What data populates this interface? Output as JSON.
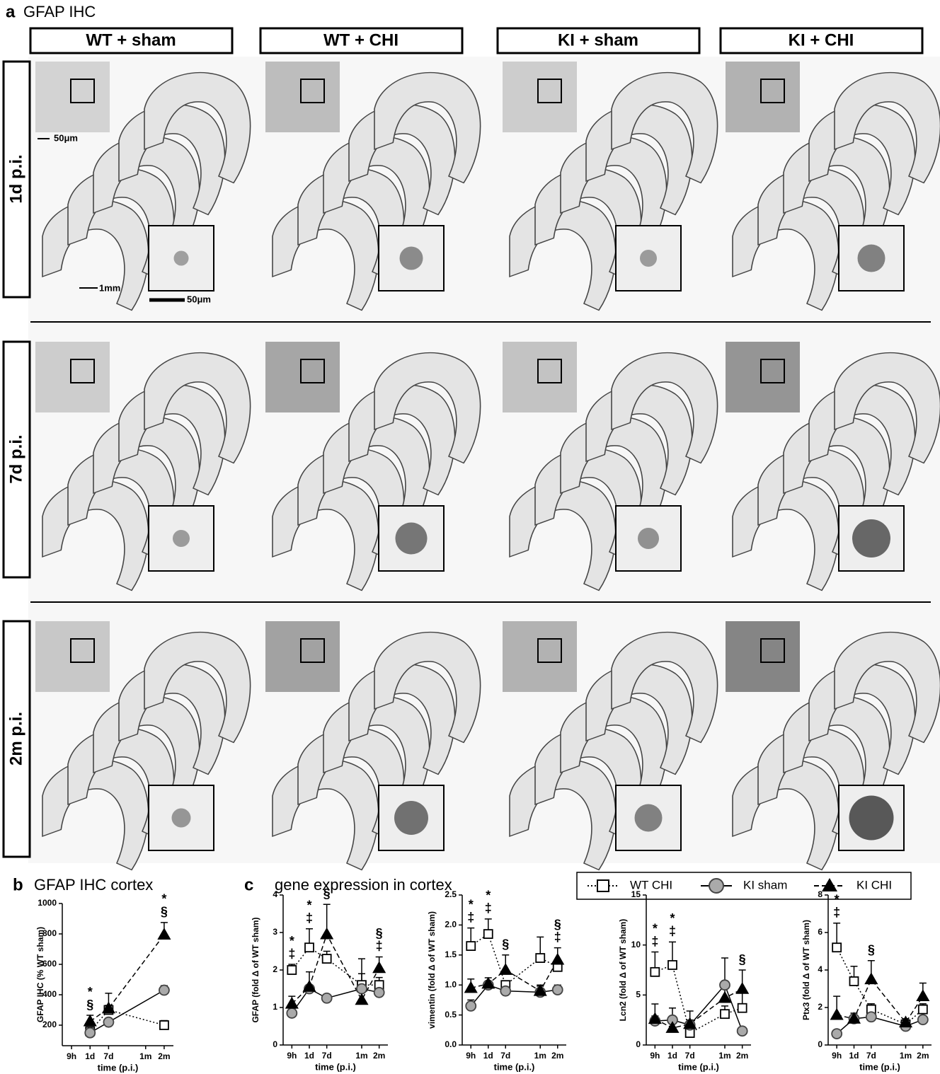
{
  "panel_a": {
    "label": "a",
    "title": "GFAP IHC",
    "columns": [
      "WT + sham",
      "WT + CHI",
      "KI + sham",
      "KI + CHI"
    ],
    "rows": [
      "1d p.i.",
      "7d p.i.",
      "2m p.i."
    ],
    "scale_bars": [
      "50μm",
      "1mm",
      "50μm"
    ]
  },
  "panel_b": {
    "label": "b",
    "title": "GFAP IHC cortex"
  },
  "panel_c": {
    "label": "c",
    "title": "gene expression in cortex"
  },
  "chart_data": [
    {
      "type": "line",
      "y_label": "GFAP IHC (% WT sham)",
      "x_label": "time (p.i.)",
      "xlim": [
        -0.5,
        5.5
      ],
      "xticks": [
        {
          "value": 0,
          "label": "9h"
        },
        {
          "value": 1,
          "label": "1d"
        },
        {
          "value": 2,
          "label": "7d"
        },
        {
          "value": 4,
          "label": "1m"
        },
        {
          "value": 5,
          "label": "2m"
        }
      ],
      "ylim": [
        65,
        1000
      ],
      "yticks": [
        200,
        400,
        600,
        800,
        1000
      ],
      "x": [
        1,
        2,
        5
      ],
      "series": [
        {
          "name": "WT CHI",
          "color": "#ffffff",
          "marker": "square",
          "line_style": "dotted",
          "values": [
            160,
            300,
            200
          ],
          "errors": [
            10,
            30,
            30
          ]
        },
        {
          "name": "KI sham",
          "color": "#aaaaaa",
          "marker": "circle",
          "line_style": "solid",
          "values": [
            150,
            220,
            430
          ],
          "errors": [
            10,
            20,
            30
          ]
        },
        {
          "name": "KI CHI",
          "color": "#000000",
          "marker": "triangle",
          "line_style": "dashed",
          "values": [
            225,
            310,
            795
          ],
          "errors": [
            40,
            100,
            80
          ]
        }
      ],
      "annotations": [
        {
          "x": 1,
          "labels": [
            "*",
            "§"
          ]
        },
        {
          "x": 5,
          "labels": [
            "*",
            "§"
          ]
        }
      ]
    },
    {
      "type": "line",
      "y_label": "GFAP (fold Δ of WT sham)",
      "x_label": "time (p.i.)",
      "xlim": [
        -0.5,
        5.5
      ],
      "xticks": [
        {
          "value": 0,
          "label": "9h"
        },
        {
          "value": 1,
          "label": "1d"
        },
        {
          "value": 2,
          "label": "7d"
        },
        {
          "value": 4,
          "label": "1m"
        },
        {
          "value": 5,
          "label": "2m"
        }
      ],
      "ylim": [
        0,
        4
      ],
      "yticks": [
        0,
        1,
        2,
        3,
        4
      ],
      "x": [
        0,
        1,
        2,
        4,
        5
      ],
      "series": [
        {
          "name": "WT CHI",
          "color": "#ffffff",
          "marker": "square",
          "line_style": "dotted",
          "values": [
            2.0,
            2.6,
            2.3,
            1.6,
            1.6
          ],
          "errors": [
            0.15,
            0.5,
            0.2,
            0.3,
            0.2
          ]
        },
        {
          "name": "KI sham",
          "color": "#aaaaaa",
          "marker": "circle",
          "line_style": "solid",
          "values": [
            0.85,
            1.5,
            1.25,
            1.5,
            1.4
          ],
          "errors": [
            0.15,
            0.1,
            0.05,
            0.8,
            0.1
          ]
        },
        {
          "name": "KI CHI",
          "color": "#000000",
          "marker": "triangle",
          "line_style": "dashed",
          "values": [
            1.1,
            1.55,
            2.95,
            1.2,
            2.05
          ],
          "errors": [
            0.2,
            0.4,
            0.8,
            0.2,
            0.3
          ]
        }
      ],
      "annotations": [
        {
          "x": 0,
          "labels": [
            "*",
            "‡"
          ]
        },
        {
          "x": 1,
          "labels": [
            "*",
            "‡"
          ]
        },
        {
          "x": 2,
          "labels": [
            "§"
          ]
        },
        {
          "x": 5,
          "labels": [
            "§",
            "‡"
          ]
        }
      ]
    },
    {
      "type": "line",
      "y_label": "vimentin (fold Δ of WT sham)",
      "x_label": "time (p.i.)",
      "xlim": [
        -0.5,
        5.5
      ],
      "xticks": [
        {
          "value": 0,
          "label": "9h"
        },
        {
          "value": 1,
          "label": "1d"
        },
        {
          "value": 2,
          "label": "7d"
        },
        {
          "value": 4,
          "label": "1m"
        },
        {
          "value": 5,
          "label": "2m"
        }
      ],
      "ylim": [
        0,
        2.5
      ],
      "yticks": [
        {
          "value": 0,
          "label": "0.0"
        },
        0.5,
        {
          "value": 1,
          "label": "1.0"
        },
        1.5,
        {
          "value": 2,
          "label": "2.0"
        },
        2.5
      ],
      "x": [
        0,
        1,
        2,
        4,
        5
      ],
      "series": [
        {
          "name": "WT CHI",
          "color": "#ffffff",
          "marker": "square",
          "line_style": "dotted",
          "values": [
            1.65,
            1.85,
            1.0,
            1.45,
            1.3
          ],
          "errors": [
            0.3,
            0.25,
            0.05,
            0.35,
            0.05
          ]
        },
        {
          "name": "KI sham",
          "color": "#aaaaaa",
          "marker": "circle",
          "line_style": "solid",
          "values": [
            0.65,
            1.0,
            0.9,
            0.88,
            0.92
          ],
          "errors": [
            0.1,
            0.05,
            0.05,
            0.1,
            0.08
          ]
        },
        {
          "name": "KI CHI",
          "color": "#000000",
          "marker": "triangle",
          "line_style": "dashed",
          "values": [
            0.95,
            1.02,
            1.25,
            0.9,
            1.42
          ],
          "errors": [
            0.15,
            0.1,
            0.25,
            0.1,
            0.2
          ]
        }
      ],
      "annotations": [
        {
          "x": 0,
          "labels": [
            "*",
            "‡"
          ]
        },
        {
          "x": 1,
          "labels": [
            "*",
            "‡"
          ]
        },
        {
          "x": 2,
          "labels": [
            "§"
          ]
        },
        {
          "x": 5,
          "labels": [
            "§",
            "‡"
          ]
        }
      ]
    },
    {
      "type": "line",
      "y_label": "Lcn2 (fold Δ of WT sham)",
      "x_label": "time (p.i.)",
      "xlim": [
        -0.5,
        5.5
      ],
      "xticks": [
        {
          "value": 0,
          "label": "9h"
        },
        {
          "value": 1,
          "label": "1d"
        },
        {
          "value": 2,
          "label": "7d"
        },
        {
          "value": 4,
          "label": "1m"
        },
        {
          "value": 5,
          "label": "2m"
        }
      ],
      "ylim": [
        0,
        15
      ],
      "yticks": [
        0,
        5,
        10,
        15
      ],
      "x": [
        0,
        1,
        2,
        4,
        5
      ],
      "series": [
        {
          "name": "WT CHI",
          "color": "#ffffff",
          "marker": "square",
          "line_style": "dotted",
          "values": [
            7.3,
            8.0,
            1.2,
            3.1,
            3.7
          ],
          "errors": [
            2,
            2.3,
            0.3,
            0.8,
            1.5
          ]
        },
        {
          "name": "KI sham",
          "color": "#aaaaaa",
          "marker": "circle",
          "line_style": "solid",
          "values": [
            2.4,
            2.5,
            2.0,
            6.0,
            1.4
          ],
          "errors": [
            0.5,
            1.2,
            0.5,
            2.7,
            0.3
          ]
        },
        {
          "name": "KI CHI",
          "color": "#000000",
          "marker": "triangle",
          "line_style": "dashed",
          "values": [
            2.6,
            1.7,
            2.1,
            4.7,
            5.6
          ],
          "errors": [
            1.5,
            0.5,
            1.3,
            1,
            1.9
          ]
        }
      ],
      "annotations": [
        {
          "x": 0,
          "labels": [
            "*",
            "‡"
          ]
        },
        {
          "x": 1,
          "labels": [
            "*",
            "‡"
          ]
        },
        {
          "x": 5,
          "labels": [
            "§"
          ]
        }
      ]
    },
    {
      "type": "line",
      "y_label": "Ptx3 (fold Δ of WT sham)",
      "x_label": "time (p.i.)",
      "xlim": [
        -0.5,
        5.5
      ],
      "xticks": [
        {
          "value": 0,
          "label": "9h"
        },
        {
          "value": 1,
          "label": "1d"
        },
        {
          "value": 2,
          "label": "7d"
        },
        {
          "value": 4,
          "label": "1m"
        },
        {
          "value": 5,
          "label": "2m"
        }
      ],
      "ylim": [
        0,
        8
      ],
      "yticks": [
        0,
        2,
        4,
        6,
        8
      ],
      "x": [
        0,
        1,
        2,
        4,
        5
      ],
      "series": [
        {
          "name": "WT CHI",
          "color": "#ffffff",
          "marker": "square",
          "line_style": "dotted",
          "values": [
            5.2,
            3.4,
            1.9,
            1.1,
            1.9
          ],
          "errors": [
            1.3,
            0.8,
            0.3,
            0.2,
            0.3
          ]
        },
        {
          "name": "KI sham",
          "color": "#aaaaaa",
          "marker": "circle",
          "line_style": "solid",
          "values": [
            0.6,
            1.4,
            1.5,
            1.0,
            1.35
          ],
          "errors": [
            0.1,
            0.2,
            0.2,
            0.1,
            0.2
          ]
        },
        {
          "name": "KI CHI",
          "color": "#000000",
          "marker": "triangle",
          "line_style": "dashed",
          "values": [
            1.6,
            1.4,
            3.5,
            1.2,
            2.6
          ],
          "errors": [
            1,
            0.3,
            1,
            0.2,
            0.7
          ]
        }
      ],
      "annotations": [
        {
          "x": 0,
          "labels": [
            "*",
            "‡"
          ]
        },
        {
          "x": 2,
          "labels": [
            "§"
          ]
        }
      ]
    }
  ]
}
